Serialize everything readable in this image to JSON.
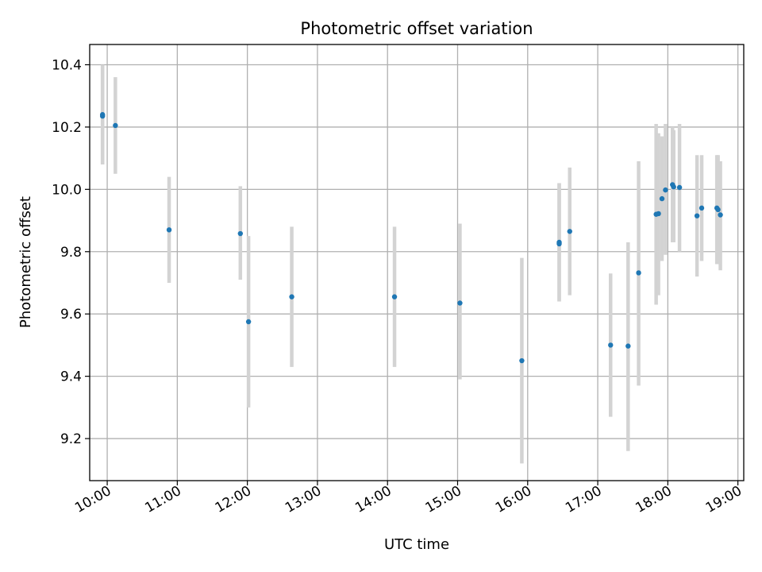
{
  "chart_data": {
    "type": "scatter",
    "title": "Photometric offset variation",
    "xlabel": "UTC time",
    "ylabel": "Photometric offset",
    "xlim": [
      "09:45",
      "19:05"
    ],
    "ylim": [
      9.065,
      10.465
    ],
    "x_ticks": [
      "10:00",
      "11:00",
      "12:00",
      "13:00",
      "14:00",
      "15:00",
      "16:00",
      "17:00",
      "18:00",
      "19:00"
    ],
    "y_ticks": [
      9.2,
      9.4,
      9.6,
      9.8,
      10.0,
      10.2,
      10.4
    ],
    "y_tick_labels": [
      "9.2",
      "9.4",
      "9.6",
      "9.8",
      "10.0",
      "10.2",
      "10.4"
    ],
    "grid": true,
    "marker_color": "#1f77b4",
    "errorbar_color": "#d3d3d3",
    "points": [
      {
        "x": "09:56",
        "y": 10.24,
        "ylow": 10.08,
        "yhigh": 10.4
      },
      {
        "x": "09:56",
        "y": 10.235,
        "ylow": 10.08,
        "yhigh": 10.4
      },
      {
        "x": "10:07",
        "y": 10.205,
        "ylow": 10.05,
        "yhigh": 10.36
      },
      {
        "x": "10:53",
        "y": 9.87,
        "ylow": 9.7,
        "yhigh": 10.04
      },
      {
        "x": "11:54",
        "y": 9.858,
        "ylow": 9.71,
        "yhigh": 10.01
      },
      {
        "x": "12:01",
        "y": 9.575,
        "ylow": 9.3,
        "yhigh": 9.85
      },
      {
        "x": "12:38",
        "y": 9.655,
        "ylow": 9.43,
        "yhigh": 9.88
      },
      {
        "x": "14:06",
        "y": 9.655,
        "ylow": 9.43,
        "yhigh": 9.88
      },
      {
        "x": "15:02",
        "y": 9.635,
        "ylow": 9.39,
        "yhigh": 9.89
      },
      {
        "x": "15:55",
        "y": 9.45,
        "ylow": 9.12,
        "yhigh": 9.78
      },
      {
        "x": "16:27",
        "y": 9.83,
        "ylow": 9.64,
        "yhigh": 10.02
      },
      {
        "x": "16:27",
        "y": 9.825,
        "ylow": 9.64,
        "yhigh": 10.02
      },
      {
        "x": "16:36",
        "y": 9.865,
        "ylow": 9.66,
        "yhigh": 10.07
      },
      {
        "x": "17:11",
        "y": 9.5,
        "ylow": 9.27,
        "yhigh": 9.73
      },
      {
        "x": "17:26",
        "y": 9.497,
        "ylow": 9.16,
        "yhigh": 9.83
      },
      {
        "x": "17:35",
        "y": 9.732,
        "ylow": 9.37,
        "yhigh": 10.09
      },
      {
        "x": "17:50",
        "y": 9.92,
        "ylow": 9.63,
        "yhigh": 10.21
      },
      {
        "x": "17:52",
        "y": 9.922,
        "ylow": 9.66,
        "yhigh": 10.18
      },
      {
        "x": "17:55",
        "y": 9.97,
        "ylow": 9.77,
        "yhigh": 10.17
      },
      {
        "x": "17:58",
        "y": 9.998,
        "ylow": 9.79,
        "yhigh": 10.21
      },
      {
        "x": "18:04",
        "y": 10.015,
        "ylow": 9.83,
        "yhigh": 10.2
      },
      {
        "x": "18:05",
        "y": 10.008,
        "ylow": 9.83,
        "yhigh": 10.19
      },
      {
        "x": "18:10",
        "y": 10.006,
        "ylow": 9.8,
        "yhigh": 10.21
      },
      {
        "x": "18:25",
        "y": 9.915,
        "ylow": 9.72,
        "yhigh": 10.11
      },
      {
        "x": "18:29",
        "y": 9.94,
        "ylow": 9.77,
        "yhigh": 10.11
      },
      {
        "x": "18:42",
        "y": 9.94,
        "ylow": 9.76,
        "yhigh": 10.11
      },
      {
        "x": "18:43",
        "y": 9.935,
        "ylow": 9.76,
        "yhigh": 10.11
      },
      {
        "x": "18:45",
        "y": 9.918,
        "ylow": 9.74,
        "yhigh": 10.09
      }
    ]
  }
}
